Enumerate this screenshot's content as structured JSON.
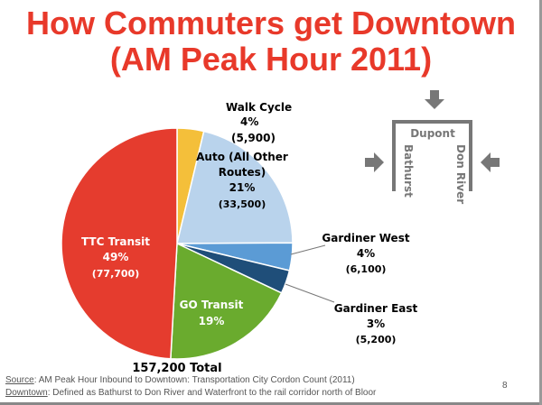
{
  "title_line1": "How Commuters get Downtown",
  "title_line2": "(AM Peak Hour 2011)",
  "chart_data": {
    "type": "pie",
    "title": "How Commuters get Downtown (AM Peak Hour 2011)",
    "total_label": "157,200 Total",
    "slices": [
      {
        "name": "Walk Cycle",
        "pct_label": "4%",
        "count_label": "(5,900)",
        "value": 5900,
        "color": "#f4bf3a"
      },
      {
        "name": "Auto (All Other Routes)",
        "name_line1": "Auto (All Other",
        "name_line2": "Routes)",
        "pct_label": "21%",
        "count_label": "(33,500)",
        "value": 33500,
        "color": "#b9d3ec"
      },
      {
        "name": "Gardiner West",
        "pct_label": "4%",
        "count_label": "(6,100)",
        "value": 6100,
        "color": "#5b9bd5"
      },
      {
        "name": "Gardiner East",
        "pct_label": "3%",
        "count_label": "(5,200)",
        "value": 5200,
        "color": "#1f4e79"
      },
      {
        "name": "GO Transit",
        "pct_label": "19%",
        "count_label": "",
        "value": 29800,
        "color": "#6aab2e"
      },
      {
        "name": "TTC Transit",
        "pct_label": "49%",
        "count_label": "(77,700)",
        "value": 77700,
        "color": "#e53c2e"
      }
    ]
  },
  "diagram": {
    "top": "Dupont",
    "left": "Bathurst",
    "right": "Don River"
  },
  "footer": {
    "source_label": "Source",
    "source_text": ": AM Peak Hour Inbound to Downtown: Transportation City Cordon Count (2011)",
    "downtown_label": "Downtown",
    "downtown_text": ":  Defined as Bathurst to Don River and Waterfront to the rail corridor north of Bloor",
    "page": "8"
  }
}
